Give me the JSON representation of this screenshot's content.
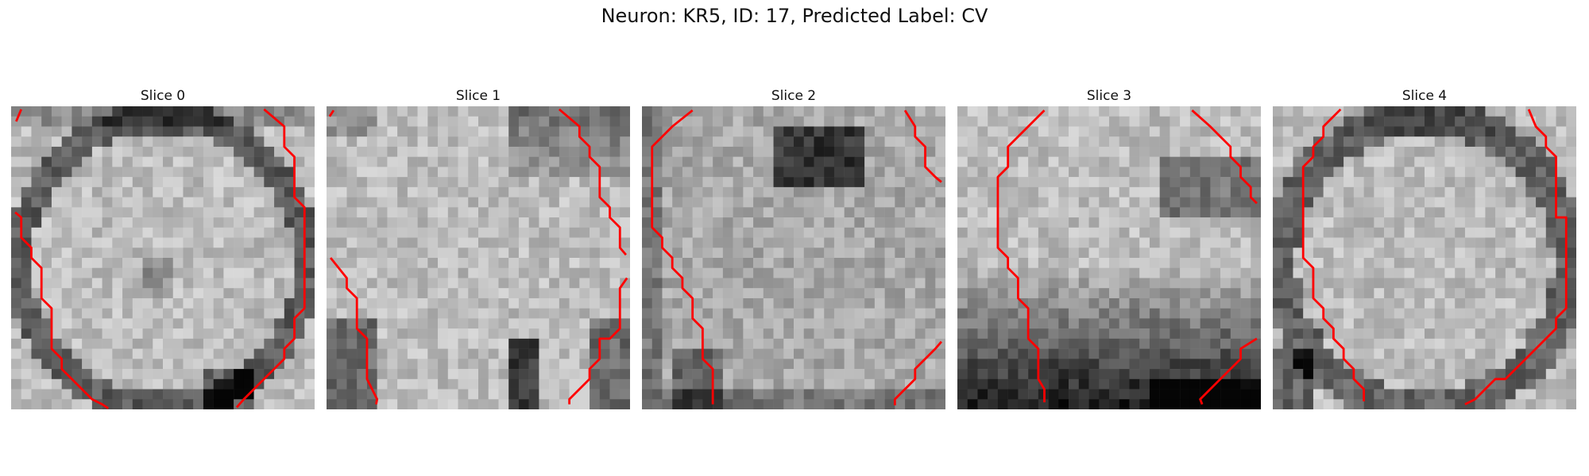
{
  "figure": {
    "title": "Neuron: KR5, ID: 17, Predicted Label: CV"
  },
  "panels": [
    {
      "title": "Slice 0"
    },
    {
      "title": "Slice 1"
    },
    {
      "title": "Slice 2"
    },
    {
      "title": "Slice 3"
    },
    {
      "title": "Slice 4"
    }
  ],
  "colors": {
    "contour": "#ff0000",
    "colormap": "grayscale",
    "background": "#ffffff"
  }
}
